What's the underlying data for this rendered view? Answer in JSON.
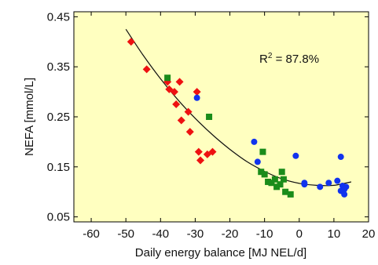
{
  "chart_data": {
    "type": "scatter",
    "xlabel": "Daily energy balance [MJ NEL/d]",
    "ylabel": "NEFA [mmol/L]",
    "xlim": [
      -65,
      20
    ],
    "ylim": [
      0.04,
      0.46
    ],
    "xticks": [
      -60,
      -50,
      -40,
      -30,
      -20,
      -10,
      0,
      10,
      20
    ],
    "yticks": [
      0.05,
      0.15,
      0.25,
      0.35,
      0.45
    ],
    "xtick_labels": [
      "-60",
      "-50",
      "-40",
      "-30",
      "-20",
      "-10",
      "0",
      "10",
      "20"
    ],
    "ytick_labels": [
      "0.05",
      "0.15",
      "0.25",
      "0.35",
      "0.45"
    ],
    "annotation": {
      "base": "R",
      "sup": "2",
      "text": " = 87.8%"
    },
    "background_color": "#ffffc0",
    "grid": false,
    "series": [
      {
        "marker": "diamond",
        "color": "#ee1111",
        "points": [
          [
            -48.5,
            0.4
          ],
          [
            -44.0,
            0.345
          ],
          [
            -38.0,
            0.32
          ],
          [
            -37.5,
            0.305
          ],
          [
            -36.0,
            0.3
          ],
          [
            -35.5,
            0.275
          ],
          [
            -34.5,
            0.32
          ],
          [
            -34.0,
            0.243
          ],
          [
            -32.0,
            0.26
          ],
          [
            -31.5,
            0.22
          ],
          [
            -29.5,
            0.3
          ],
          [
            -29.0,
            0.18
          ],
          [
            -28.5,
            0.163
          ],
          [
            -26.5,
            0.175
          ],
          [
            -25.0,
            0.18
          ]
        ]
      },
      {
        "marker": "square",
        "color": "#1a8c1a",
        "points": [
          [
            -38.0,
            0.328
          ],
          [
            -26.0,
            0.25
          ],
          [
            -11.0,
            0.14
          ],
          [
            -10.5,
            0.18
          ],
          [
            -10.0,
            0.135
          ],
          [
            -9.0,
            0.12
          ],
          [
            -8.0,
            0.118
          ],
          [
            -7.0,
            0.125
          ],
          [
            -6.5,
            0.11
          ],
          [
            -5.5,
            0.115
          ],
          [
            -5.0,
            0.14
          ],
          [
            -4.5,
            0.125
          ],
          [
            -4.0,
            0.1
          ],
          [
            -2.5,
            0.095
          ]
        ]
      },
      {
        "marker": "circle",
        "color": "#1133ee",
        "points": [
          [
            -29.5,
            0.288
          ],
          [
            -13.0,
            0.2
          ],
          [
            -12.0,
            0.16
          ],
          [
            -1.0,
            0.172
          ],
          [
            1.5,
            0.115
          ],
          [
            1.5,
            0.118
          ],
          [
            6.0,
            0.11
          ],
          [
            8.5,
            0.118
          ],
          [
            11.0,
            0.122
          ],
          [
            12.0,
            0.17
          ],
          [
            12.0,
            0.102
          ],
          [
            12.5,
            0.112
          ],
          [
            13.0,
            0.105
          ],
          [
            13.0,
            0.095
          ],
          [
            13.5,
            0.11
          ]
        ]
      }
    ],
    "fit_curve": {
      "color": "#111111",
      "points": [
        [
          -50,
          0.425
        ],
        [
          -45,
          0.373
        ],
        [
          -40,
          0.326
        ],
        [
          -35,
          0.284
        ],
        [
          -30,
          0.247
        ],
        [
          -25,
          0.214
        ],
        [
          -20,
          0.185
        ],
        [
          -15,
          0.16
        ],
        [
          -10,
          0.141
        ],
        [
          -5,
          0.126
        ],
        [
          0,
          0.117
        ],
        [
          5,
          0.113
        ],
        [
          10,
          0.113
        ],
        [
          15,
          0.12
        ]
      ]
    }
  }
}
